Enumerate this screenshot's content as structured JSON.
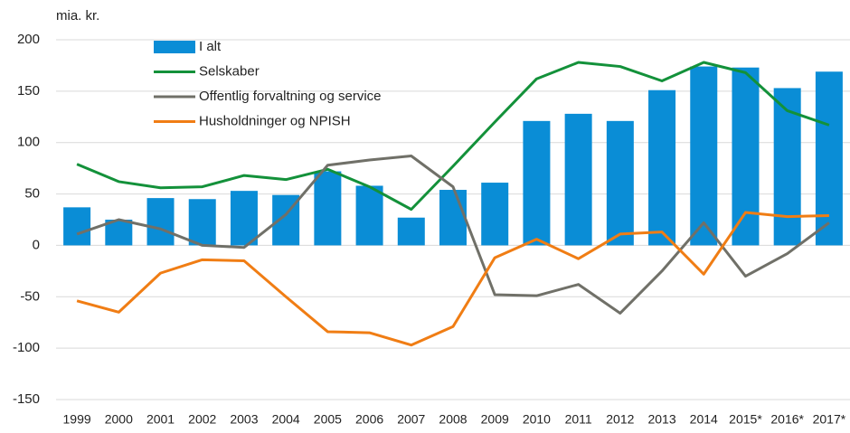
{
  "chart_data": {
    "type": "bar",
    "y_label": "mia. kr.",
    "categories": [
      "1999",
      "2000",
      "2001",
      "2002",
      "2003",
      "2004",
      "2005",
      "2006",
      "2007",
      "2008",
      "2009",
      "2010",
      "2011",
      "2012",
      "2013",
      "2014",
      "2015*",
      "2016*",
      "2017*"
    ],
    "series": [
      {
        "name": "I alt",
        "type": "bar",
        "color": "#0a8dd6",
        "values": [
          37,
          25,
          46,
          45,
          53,
          49,
          72,
          58,
          27,
          54,
          61,
          121,
          128,
          121,
          151,
          174,
          173,
          153,
          169
        ]
      },
      {
        "name": "Selskaber",
        "type": "line",
        "color": "#13913a",
        "values": [
          79,
          62,
          56,
          57,
          68,
          64,
          74,
          57,
          35,
          77,
          120,
          162,
          178,
          174,
          160,
          178,
          168,
          131,
          117
        ]
      },
      {
        "name": "Offentlig forvaltning og service",
        "type": "line",
        "color": "#707068",
        "values": [
          11,
          25,
          16,
          0,
          -2,
          30,
          78,
          83,
          87,
          57,
          -48,
          -49,
          -38,
          -66,
          -25,
          22,
          -30,
          -8,
          22
        ]
      },
      {
        "name": "Husholdninger og NPISH",
        "type": "line",
        "color": "#f07d14",
        "values": [
          -54,
          -65,
          -27,
          -14,
          -15,
          -50,
          -84,
          -85,
          -97,
          -79,
          -12,
          6,
          -13,
          11,
          13,
          -28,
          32,
          28,
          29
        ]
      }
    ],
    "ylim": [
      -150,
      200
    ],
    "yticks": [
      -150,
      -100,
      -50,
      0,
      50,
      100,
      150,
      200
    ],
    "grid": true,
    "legend": "top-left"
  }
}
